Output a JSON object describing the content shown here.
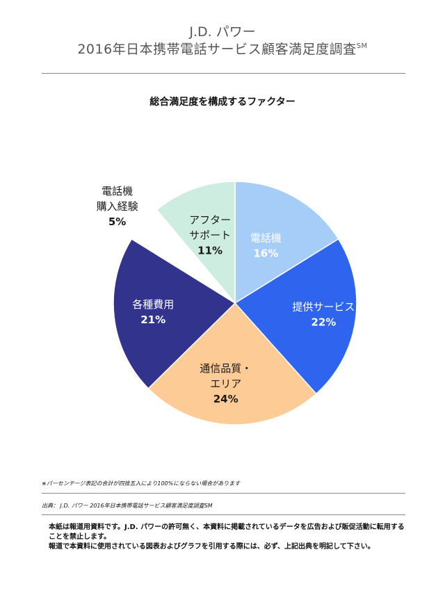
{
  "header": {
    "line1": "J.D. パワー",
    "line2": "2016年日本携帯電話サービス顧客満足度調査",
    "line2_mark": "SM"
  },
  "chart_data": {
    "type": "pie",
    "title": "総合満足度を構成するファクター",
    "slices": [
      {
        "name": "電話機",
        "lines": [
          "電話機"
        ],
        "value": 16,
        "label": "16%",
        "color": "#a6cdf8",
        "text_color": "#ffffff"
      },
      {
        "name": "提供サービス",
        "lines": [
          "提供サービス"
        ],
        "value": 22,
        "label": "22%",
        "color": "#2f64ee",
        "text_color": "#ffffff"
      },
      {
        "name": "通信品質・エリア",
        "lines": [
          "通信品質・",
          "エリア"
        ],
        "value": 24,
        "label": "24%",
        "color": "#fccb96",
        "text_color": "#1a1a1a"
      },
      {
        "name": "各種費用",
        "lines": [
          "各種費用"
        ],
        "value": 21,
        "label": "21%",
        "color": "#32338d",
        "text_color": "#ffffff"
      },
      {
        "name": "電話機購入経験",
        "lines": [
          "電話機",
          "購入経験"
        ],
        "value": 5,
        "label": "5%",
        "color": "#ffffff",
        "text_color": "#1a1a1a",
        "outside": true
      },
      {
        "name": "アフターサポート",
        "lines": [
          "アフター",
          "サポート"
        ],
        "value": 11,
        "label": "11%",
        "color": "#cceddf",
        "text_color": "#1a1a1a"
      }
    ]
  },
  "notes": {
    "rounding": "※パーセンテージ表記の合計が四捨五入により100%にならない場合があります",
    "source": "出典： J.D. パワー 2016年日本携帯電話サービス顧客満足度調査SM"
  },
  "footer": {
    "para1": "本紙は報道用資料です。J.D. パワーの許可無く、本資料に掲載されているデータを広告および販促活動に転用することを禁止します。",
    "para2": "報道で本資料に使用されている図表およびグラフを引用する際には、必ず、上記出典を明記して下さい。"
  }
}
